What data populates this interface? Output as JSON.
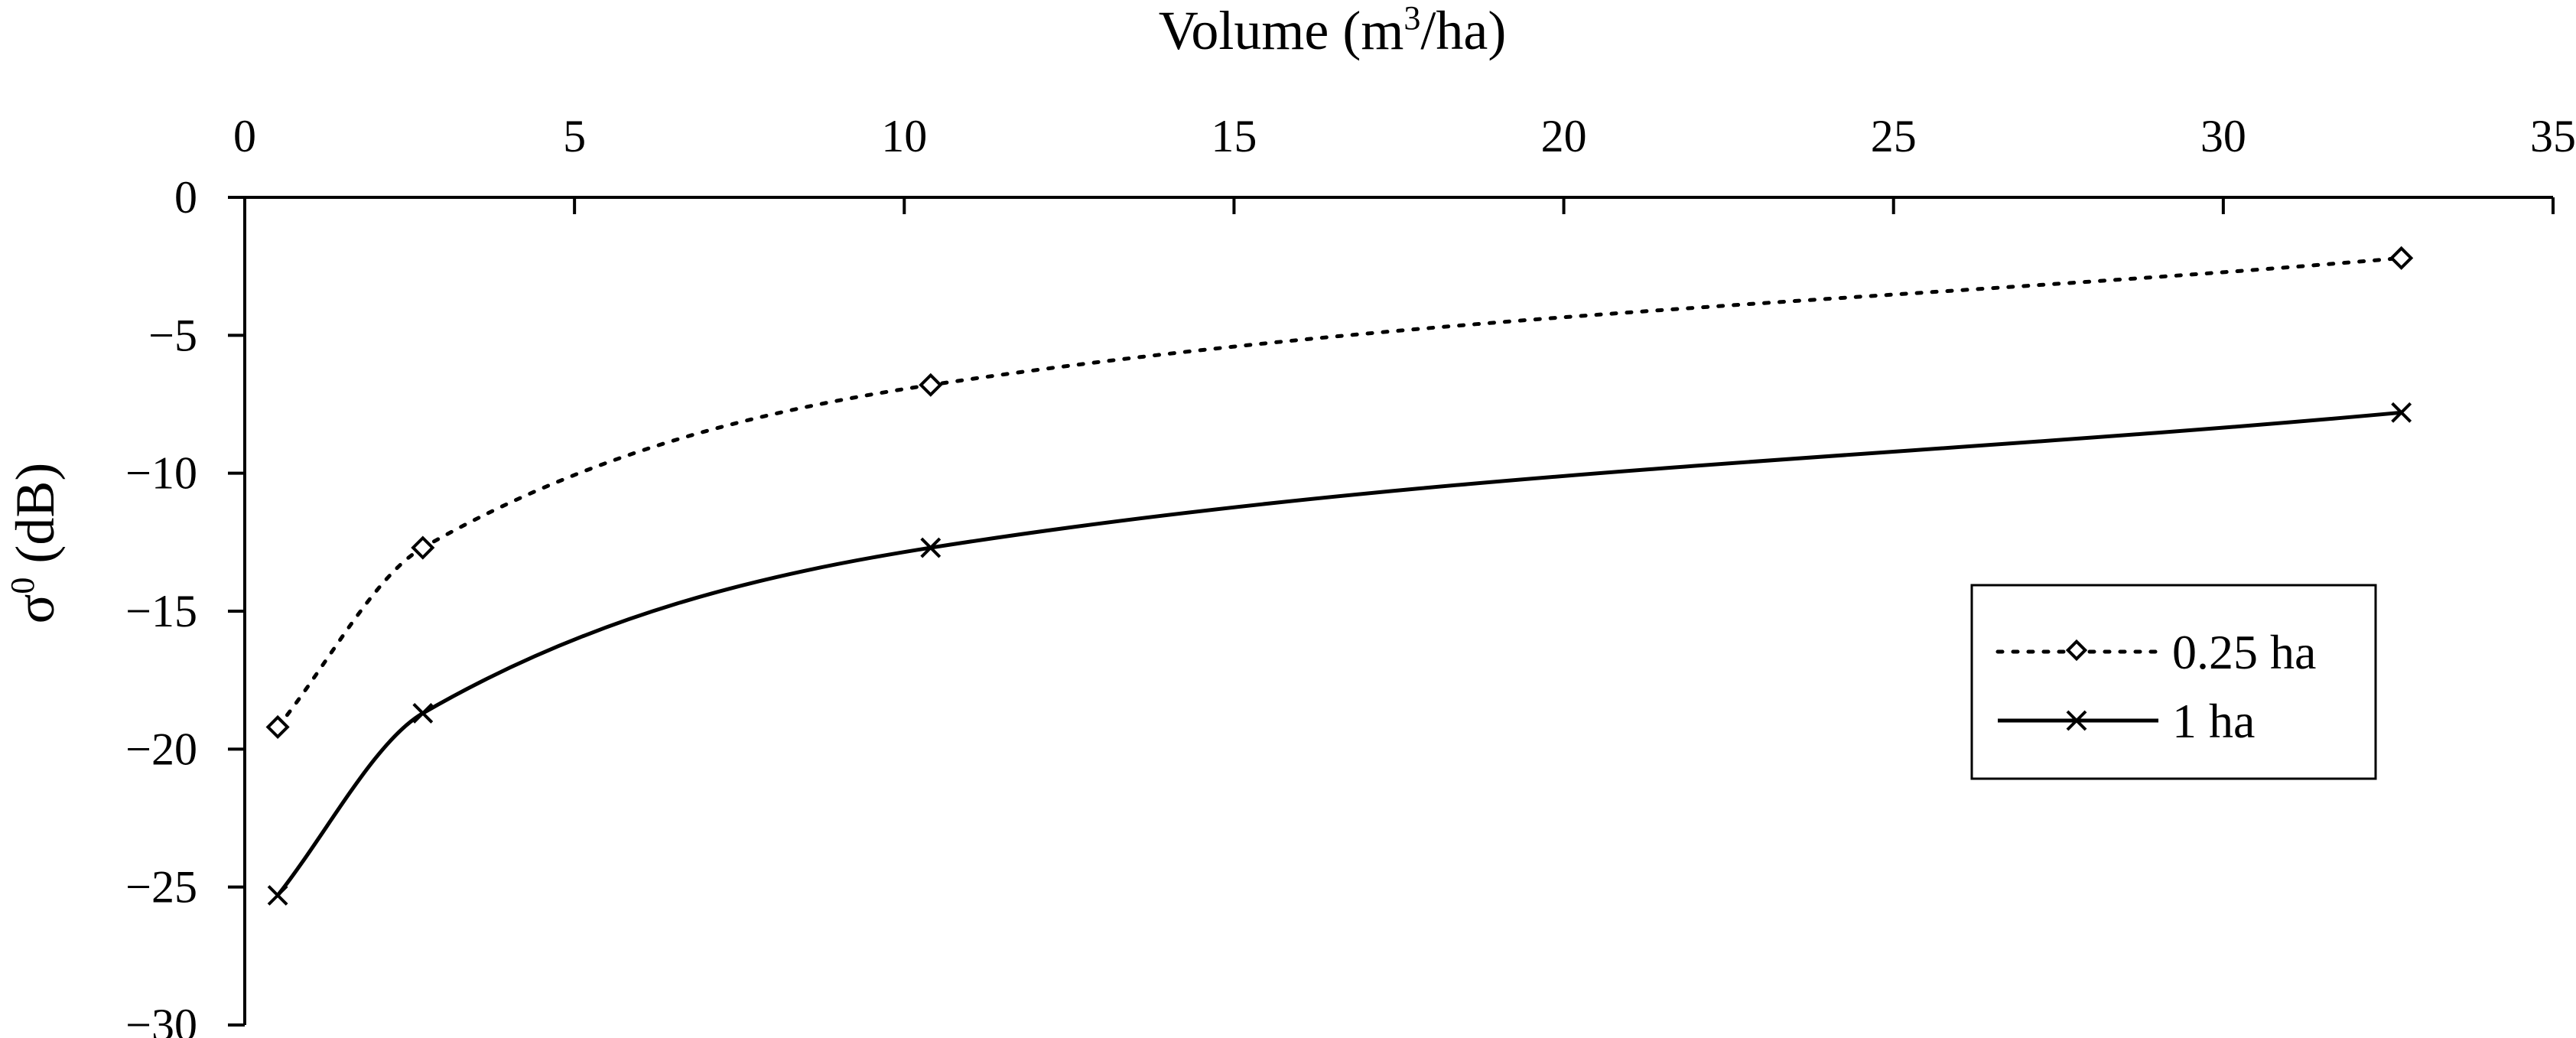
{
  "chart_data": {
    "type": "line",
    "title": "",
    "xlabel": {
      "prefix": "Volume (m",
      "sup": "3",
      "suffix": "/ha)"
    },
    "ylabel": {
      "prefix": "σ",
      "sup": "0",
      "suffix": " (dB)"
    },
    "x_axis_position": "top",
    "xlim": [
      0,
      35
    ],
    "ylim": [
      -30,
      0
    ],
    "x_ticks": [
      0,
      5,
      10,
      15,
      20,
      25,
      30,
      35
    ],
    "y_ticks": [
      0,
      -5,
      -10,
      -15,
      -20,
      -25,
      -30
    ],
    "x_tick_labels": [
      "0",
      "5",
      "10",
      "15",
      "20",
      "25",
      "30",
      "35"
    ],
    "y_tick_labels": [
      "0",
      "−5",
      "−10",
      "−15",
      "−20",
      "−25",
      "−30"
    ],
    "grid": false,
    "legend_position": "right",
    "series": [
      {
        "name": "0.25 ha",
        "line_style": "dotted",
        "marker": "diamond",
        "color": "#000000",
        "x": [
          0.5,
          2.7,
          10.4,
          32.7
        ],
        "y": [
          -19.2,
          -12.7,
          -6.8,
          -2.2
        ]
      },
      {
        "name": "1 ha",
        "line_style": "solid",
        "marker": "x",
        "color": "#000000",
        "x": [
          0.5,
          2.7,
          10.4,
          32.7
        ],
        "y": [
          -25.3,
          -18.7,
          -12.7,
          -7.8
        ]
      }
    ]
  }
}
